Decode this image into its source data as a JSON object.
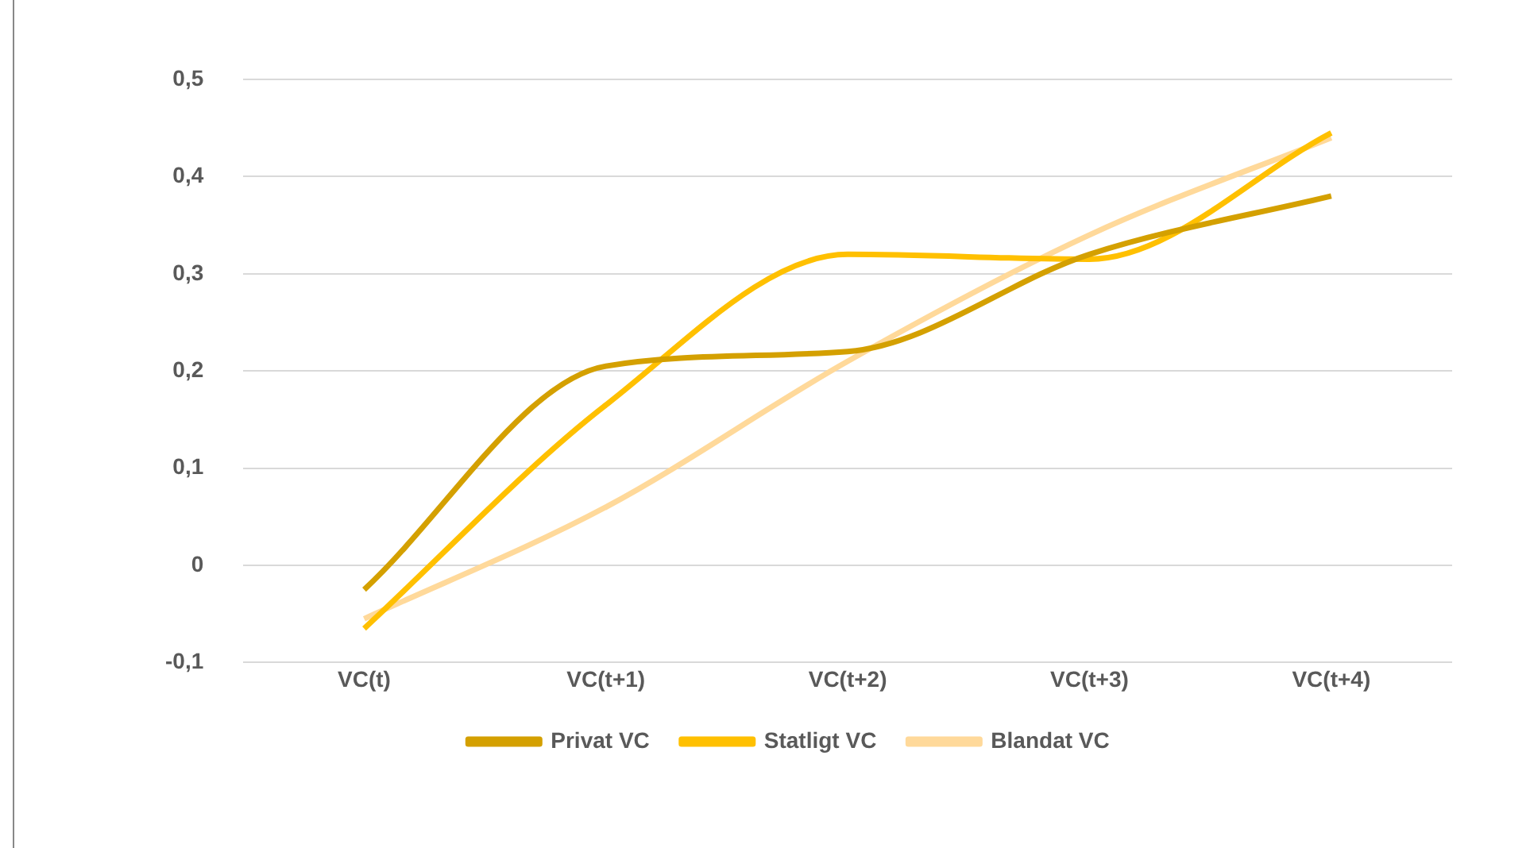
{
  "chart_data": {
    "type": "line",
    "categories": [
      "VC(t)",
      "VC(t+1)",
      "VC(t+2)",
      "VC(t+3)",
      "VC(t+4)"
    ],
    "series": [
      {
        "name": "Privat VC",
        "color": "#d4a000",
        "values": [
          -0.025,
          0.205,
          0.22,
          0.32,
          0.38
        ]
      },
      {
        "name": "Statligt VC",
        "color": "#ffc000",
        "values": [
          -0.065,
          0.165,
          0.32,
          0.315,
          0.445
        ]
      },
      {
        "name": "Blandat VC",
        "color": "#ffd99a",
        "values": [
          -0.055,
          0.06,
          0.21,
          0.34,
          0.44
        ]
      }
    ],
    "ylim": [
      -0.1,
      0.5
    ],
    "yticks": [
      {
        "value": -0.1,
        "label": "-0,1"
      },
      {
        "value": 0,
        "label": "0"
      },
      {
        "value": 0.1,
        "label": "0,1"
      },
      {
        "value": 0.2,
        "label": "0,2"
      },
      {
        "value": 0.3,
        "label": "0,3"
      },
      {
        "value": 0.4,
        "label": "0,4"
      },
      {
        "value": 0.5,
        "label": "0,5"
      }
    ],
    "grid": "y",
    "legend": "bottom",
    "marker": "none",
    "line_style": "solid"
  }
}
